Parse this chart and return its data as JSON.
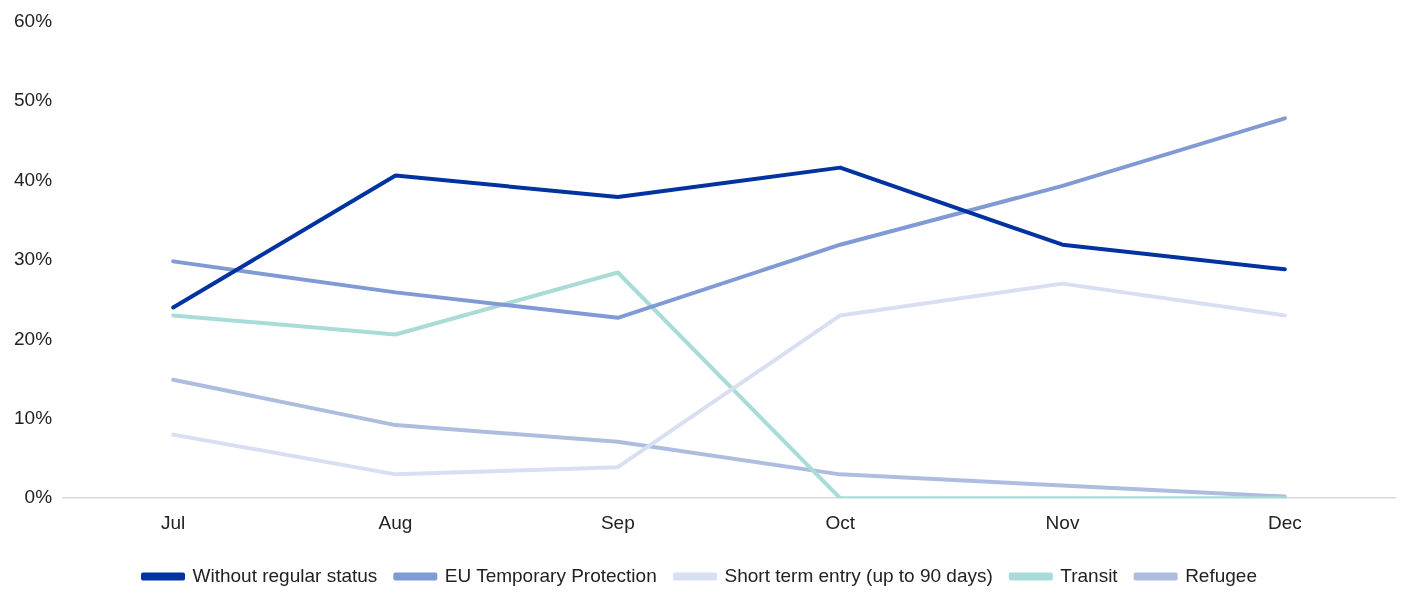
{
  "chart_data": {
    "type": "line",
    "categories": [
      "Jul",
      "Aug",
      "Sep",
      "Oct",
      "Nov",
      "Dec"
    ],
    "series": [
      {
        "name": "Without regular status",
        "color": "#0033a0",
        "values": [
          24,
          40.6,
          37.9,
          41.6,
          31.9,
          28.8
        ]
      },
      {
        "name": "EU Temporary Protection",
        "color": "#7f9ad4",
        "values": [
          29.8,
          25.9,
          22.7,
          31.9,
          39.3,
          47.8
        ]
      },
      {
        "name": "Short term entry (up to 90 days)",
        "color": "#d9dff2",
        "values": [
          8,
          3,
          3.9,
          23,
          27,
          23
        ]
      },
      {
        "name": "Transit",
        "color": "#a9dcd6",
        "values": [
          23,
          20.6,
          28.4,
          0,
          0,
          0
        ]
      },
      {
        "name": "Refugee",
        "color": "#adbde0",
        "values": [
          14.9,
          9.2,
          7.1,
          3,
          1.6,
          0.2
        ]
      }
    ],
    "ylim": [
      0,
      60
    ],
    "yticks": [
      {
        "value": 0,
        "label": "0%"
      },
      {
        "value": 10,
        "label": "10%"
      },
      {
        "value": 20,
        "label": "20%"
      },
      {
        "value": 30,
        "label": "30%"
      },
      {
        "value": 40,
        "label": "40%"
      },
      {
        "value": 50,
        "label": "50%"
      },
      {
        "value": 60,
        "label": "60%"
      }
    ],
    "grid": false,
    "legend": "bottom",
    "marker": "none",
    "line_style": "solid"
  }
}
